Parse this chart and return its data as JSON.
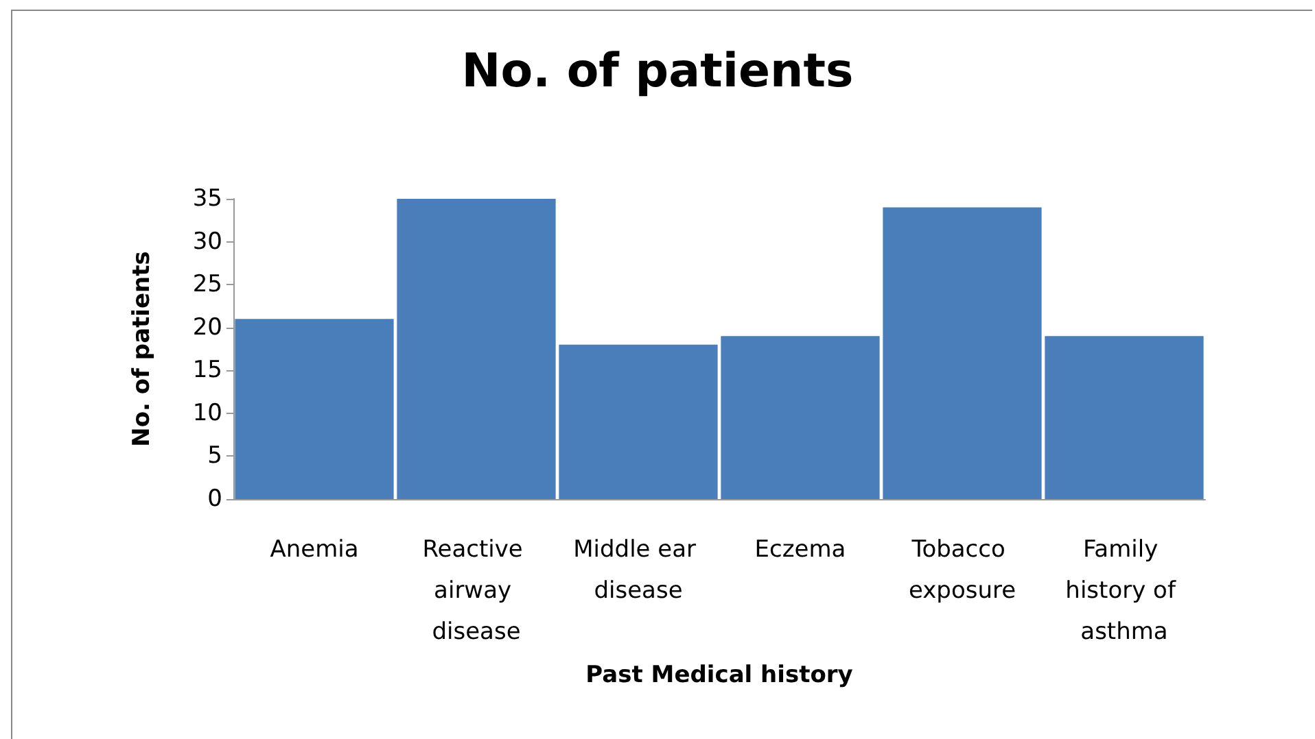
{
  "chart_data": {
    "type": "bar",
    "title": "No. of patients",
    "xlabel": "Past Medical history",
    "ylabel": "No. of patients",
    "categories": [
      "Anemia",
      "Reactive airway disease",
      "Middle ear disease",
      "Eczema",
      "Tobacco exposure",
      "Family history of asthma"
    ],
    "values": [
      21,
      35,
      18,
      19,
      34,
      19
    ],
    "color": "#4a7ebb",
    "ylim": [
      0,
      35
    ],
    "yticks": [
      0,
      5,
      10,
      15,
      20,
      25,
      30,
      35
    ],
    "grid": false
  }
}
